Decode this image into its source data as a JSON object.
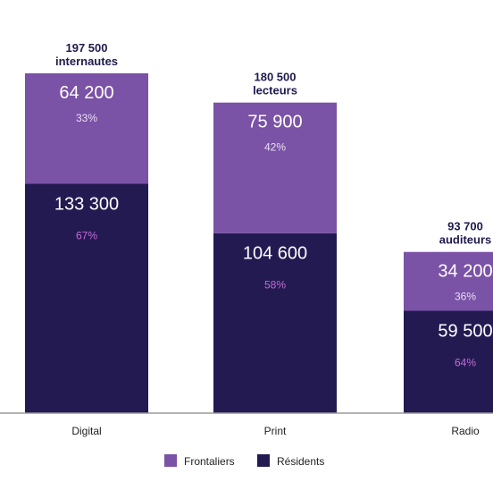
{
  "chart_data": {
    "type": "bar",
    "stacked": true,
    "categories": [
      "Digital",
      "Print",
      "Radio"
    ],
    "totals": [
      {
        "value": "197 500",
        "unit": "internautes"
      },
      {
        "value": "180 500",
        "unit": "lecteurs"
      },
      {
        "value": "93 700",
        "unit": "auditeurs"
      }
    ],
    "series": [
      {
        "name": "Frontaliers",
        "color": "#7a52a6",
        "values": [
          64200,
          75900,
          34200
        ],
        "value_labels": [
          "64 200",
          "75 900",
          "34 200"
        ],
        "percent_labels": [
          "33%",
          "42%",
          "36%"
        ]
      },
      {
        "name": "Résidents",
        "color": "#241a52",
        "values": [
          133300,
          104600,
          59500
        ],
        "value_labels": [
          "133 300",
          "104 600",
          "59 500"
        ],
        "percent_labels": [
          "67%",
          "58%",
          "64%"
        ]
      }
    ],
    "legend_position": "bottom",
    "grid": false
  }
}
